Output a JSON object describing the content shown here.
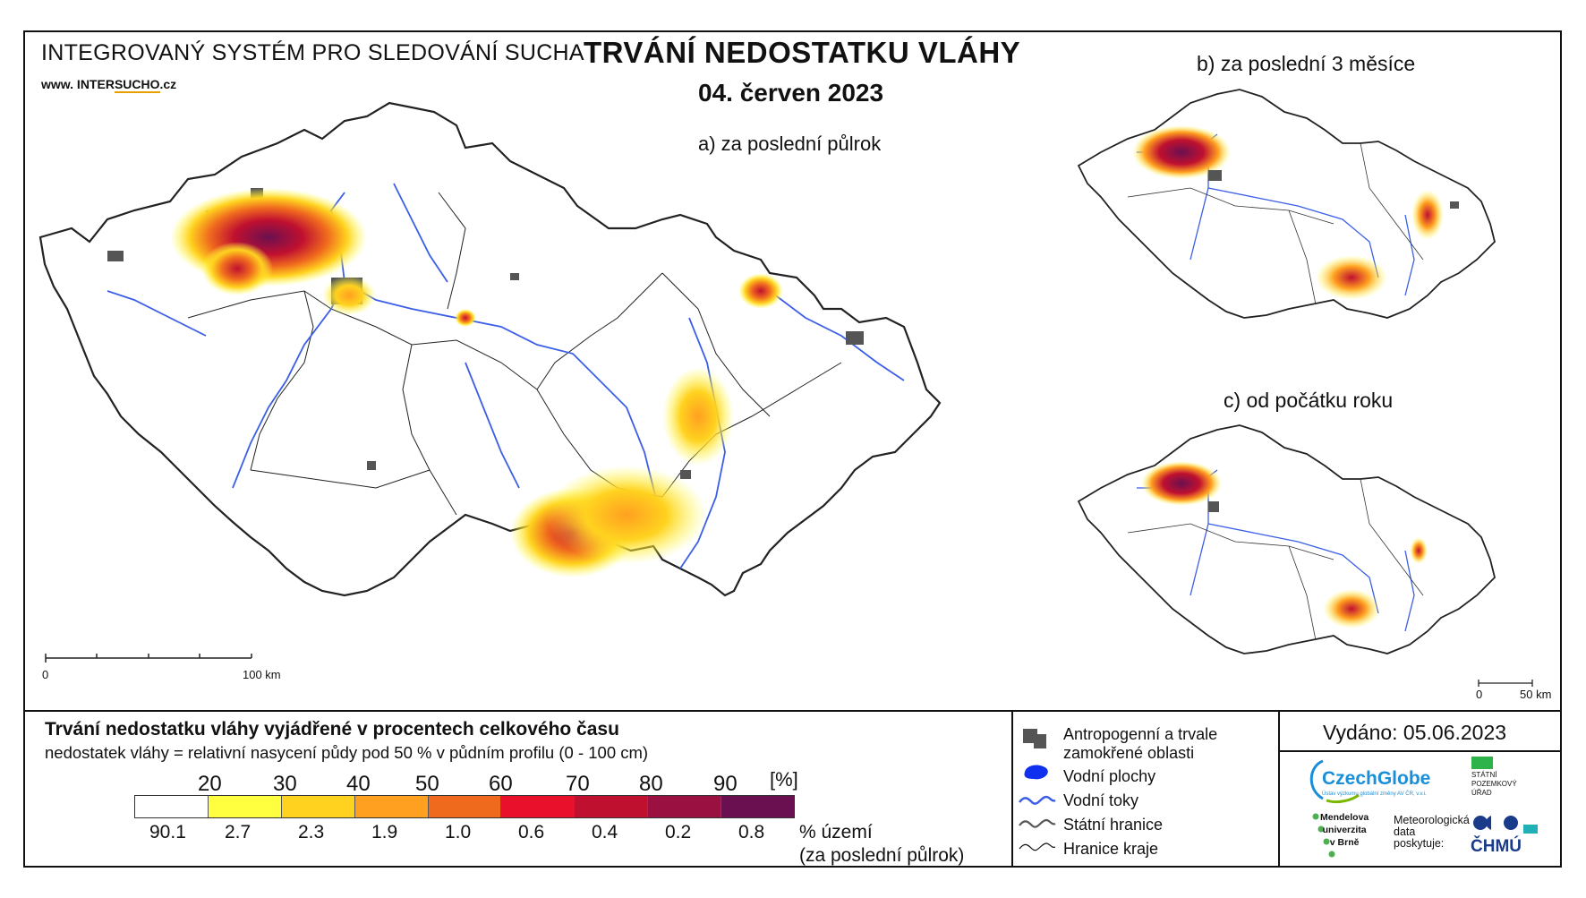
{
  "header": {
    "system_name": "INTEGROVANÝ SYSTÉM PRO SLEDOVÁNÍ SUCHA",
    "website_prefix": "www. INTER",
    "website_mid": "SUCHO",
    "website_suffix": ".cz",
    "title": "TRVÁNÍ NEDOSTATKU VLÁHY",
    "date": "04. červen 2023"
  },
  "maps": {
    "a_label": "a) za poslední půlrok",
    "b_label": "b) za poslední 3 měsíce",
    "c_label": "c) od počátku roku",
    "scale_a": {
      "zero": "0",
      "end": "100 km"
    },
    "scale_c": {
      "zero": "0",
      "end": "50 km"
    }
  },
  "legend": {
    "title": "Trvání nedostatku vláhy vyjádřené v procentech celkového času",
    "subtitle": "nedostatek vláhy = relativní nasycení půdy pod 50 % v půdním profilu (0 - 100 cm)",
    "thresholds": [
      "20",
      "30",
      "40",
      "50",
      "60",
      "70",
      "80",
      "90"
    ],
    "unit": "[%]",
    "colors": [
      "#ffffff",
      "#ffff40",
      "#ffd21f",
      "#ffa020",
      "#f06a1e",
      "#e8102a",
      "#c01030",
      "#9a1040",
      "#6a1050"
    ],
    "area_percent": [
      "90.1",
      "2.7",
      "2.3",
      "1.9",
      "1.0",
      "0.6",
      "0.4",
      "0.2",
      "0.8"
    ],
    "area_label_1": "% území",
    "area_label_2": "(za poslední půlrok)"
  },
  "symbols": {
    "anthropogenic_1": "Antropogenní a trvale",
    "anthropogenic_2": "zamokřené oblasti",
    "water_bodies": "Vodní plochy",
    "rivers": "Vodní toky",
    "state_border": "Státní hranice",
    "region_border": "Hranice kraje"
  },
  "issued": "Vydáno: 05.06.2023",
  "logos": {
    "czechglobe": "CzechGlobe",
    "czechglobe_sub": "Ústav výzkumu globální změny AV ČR, v.v.i.",
    "spu_1": "STÁTNÍ",
    "spu_2": "POZEMKOVÝ",
    "spu_3": "ÚŘAD",
    "mendel_1": "Mendelova",
    "mendel_2": "univerzita",
    "mendel_3": "v Brně",
    "meteo_1": "Meteorologická",
    "meteo_2": "data",
    "meteo_3": "poskytuje:",
    "chmu": "ČHMÚ"
  },
  "icons": [
    "anthropogenic-area-icon",
    "water-body-icon",
    "river-icon",
    "state-border-icon",
    "region-border-icon"
  ]
}
